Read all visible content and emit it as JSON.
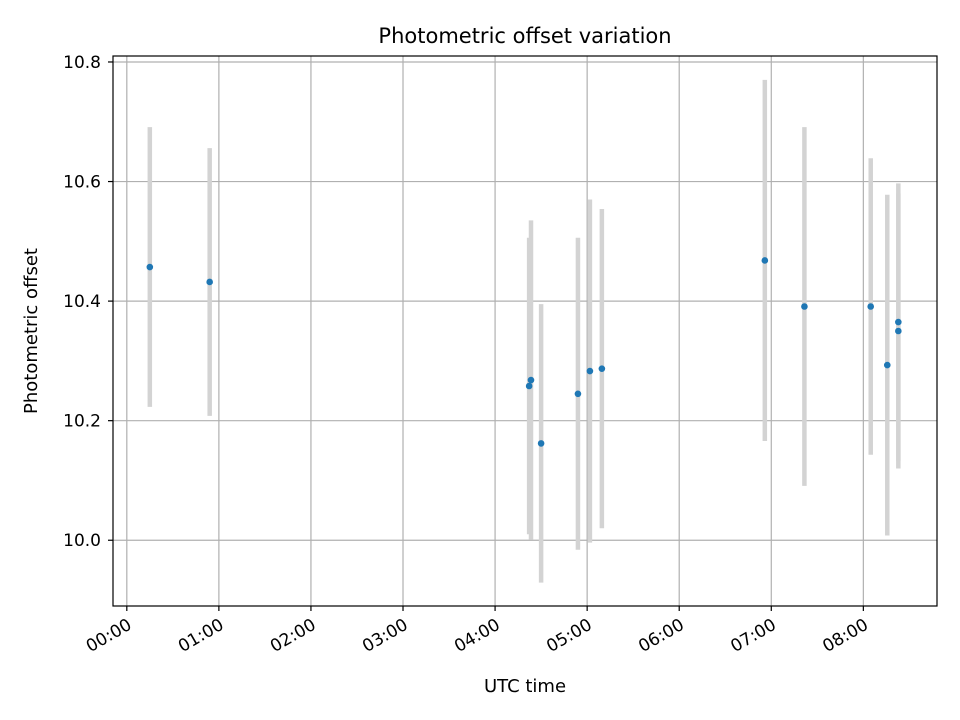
{
  "chart_data": {
    "type": "scatter",
    "title": "Photometric offset variation",
    "xlabel": "UTC time",
    "ylabel": "Photometric offset",
    "x_unit": "hours UTC",
    "xlim": [
      -0.15,
      8.8
    ],
    "ylim": [
      9.89,
      10.81
    ],
    "grid": true,
    "x_ticks": [
      {
        "value": 0,
        "label": "00:00"
      },
      {
        "value": 1,
        "label": "01:00"
      },
      {
        "value": 2,
        "label": "02:00"
      },
      {
        "value": 3,
        "label": "03:00"
      },
      {
        "value": 4,
        "label": "04:00"
      },
      {
        "value": 5,
        "label": "05:00"
      },
      {
        "value": 6,
        "label": "06:00"
      },
      {
        "value": 7,
        "label": "07:00"
      },
      {
        "value": 8,
        "label": "08:00"
      }
    ],
    "y_ticks": [
      {
        "value": 10.0,
        "label": "10.0"
      },
      {
        "value": 10.2,
        "label": "10.2"
      },
      {
        "value": 10.4,
        "label": "10.4"
      },
      {
        "value": 10.6,
        "label": "10.6"
      },
      {
        "value": 10.8,
        "label": "10.8"
      }
    ],
    "point_color": "#1f77b4",
    "errorbar_color": "#d3d3d3",
    "points": [
      {
        "x": 0.25,
        "y": 10.457,
        "err": 0.234
      },
      {
        "x": 0.9,
        "y": 10.432,
        "err": 0.224
      },
      {
        "x": 4.37,
        "y": 10.258,
        "err": 0.248
      },
      {
        "x": 4.39,
        "y": 10.268,
        "err": 0.267
      },
      {
        "x": 4.5,
        "y": 10.162,
        "err": 0.233
      },
      {
        "x": 4.9,
        "y": 10.245,
        "err": 0.261
      },
      {
        "x": 5.03,
        "y": 10.283,
        "err": 0.287
      },
      {
        "x": 5.16,
        "y": 10.287,
        "err": 0.267
      },
      {
        "x": 6.93,
        "y": 10.468,
        "err": 0.302
      },
      {
        "x": 7.36,
        "y": 10.391,
        "err": 0.3
      },
      {
        "x": 8.08,
        "y": 10.391,
        "err": 0.248
      },
      {
        "x": 8.26,
        "y": 10.293,
        "err": 0.285
      },
      {
        "x": 8.38,
        "y": 10.365,
        "err": 0.232
      },
      {
        "x": 8.38,
        "y": 10.35,
        "err": 0.23
      }
    ]
  }
}
